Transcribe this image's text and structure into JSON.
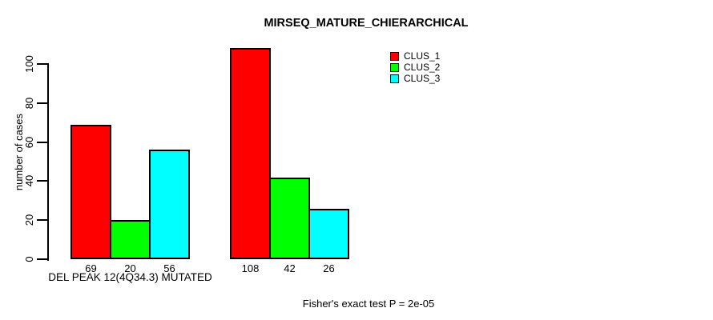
{
  "chart_data": {
    "type": "bar",
    "title": "MIRSEQ_MATURE_CHIERARCHICAL",
    "ylabel": "number of cases",
    "xlabel": "DEL PEAK 12(4Q34.3) MUTATED",
    "group_labels": [
      "DEL PEAK 12(4Q34.3) MUTATED",
      ""
    ],
    "y_ticks": [
      0,
      20,
      40,
      60,
      80,
      100
    ],
    "ylim": [
      0,
      110
    ],
    "grid": false,
    "legend_position": "top-right",
    "series": [
      {
        "name": "CLUS_1",
        "color": "#ff0000",
        "values": [
          69,
          108
        ]
      },
      {
        "name": "CLUS_2",
        "color": "#00ff00",
        "values": [
          20,
          42
        ]
      },
      {
        "name": "CLUS_3",
        "color": "#00ffff",
        "values": [
          56,
          26
        ]
      }
    ],
    "annotation": "Fisher's exact test P = 2e-05"
  }
}
